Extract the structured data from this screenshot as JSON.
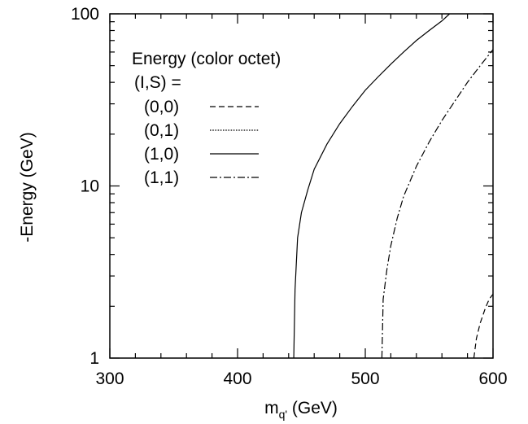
{
  "chart_data": {
    "type": "line",
    "xlabel": {
      "main": "m",
      "sub": "q'",
      "suffix": " (GeV)"
    },
    "ylabel": "-Energy (GeV)",
    "xlim": [
      300,
      600
    ],
    "ylim": [
      1,
      100
    ],
    "yscale": "log",
    "grid": false,
    "x_ticks": [
      300,
      400,
      500,
      600
    ],
    "y_ticks": [
      1,
      10,
      100
    ],
    "legend": {
      "title": "Energy (color octet)",
      "subtitle": "(I,S) =",
      "placement": "top-left"
    },
    "series": [
      {
        "name": "(0,0)",
        "style": "dashed",
        "points": [
          [
            585,
            1
          ],
          [
            587,
            1.3
          ],
          [
            590,
            1.6
          ],
          [
            594,
            1.95
          ],
          [
            597,
            2.2
          ],
          [
            600,
            2.35
          ]
        ]
      },
      {
        "name": "(0,1)",
        "style": "dotted",
        "points": []
      },
      {
        "name": "(1,0)",
        "style": "solid",
        "points": [
          [
            444,
            1
          ],
          [
            445,
            2.5
          ],
          [
            447,
            5
          ],
          [
            450,
            7
          ],
          [
            455,
            9.5
          ],
          [
            460,
            12.5
          ],
          [
            470,
            17.5
          ],
          [
            480,
            23
          ],
          [
            490,
            29
          ],
          [
            500,
            36
          ],
          [
            510,
            43
          ],
          [
            520,
            51
          ],
          [
            530,
            60
          ],
          [
            540,
            70
          ],
          [
            550,
            80
          ],
          [
            560,
            91
          ],
          [
            566,
            100
          ]
        ]
      },
      {
        "name": "(1,1)",
        "style": "dashdot",
        "points": [
          [
            513,
            1
          ],
          [
            514,
            2.2
          ],
          [
            517,
            3.3
          ],
          [
            520,
            4.5
          ],
          [
            525,
            6.5
          ],
          [
            530,
            8.7
          ],
          [
            540,
            13
          ],
          [
            550,
            18
          ],
          [
            560,
            24
          ],
          [
            570,
            31
          ],
          [
            580,
            40
          ],
          [
            590,
            50
          ],
          [
            600,
            62
          ]
        ]
      }
    ]
  }
}
